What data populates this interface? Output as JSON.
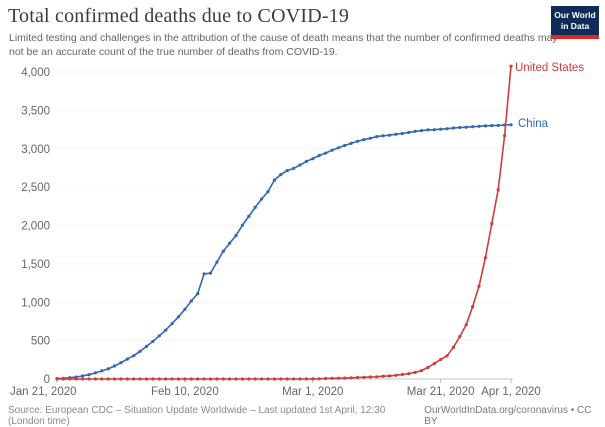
{
  "header": {
    "title": "Total confirmed deaths due to COVID-19",
    "subtitle": "Limited testing and challenges in the attribution of the cause of death means that the number of confirmed deaths may not be an accurate count of the true number of deaths from COVID-19."
  },
  "logo": {
    "line1": "Our World",
    "line2": "in Data",
    "bg_color": "#0d2c5a",
    "stripe_color": "#dc2b1f"
  },
  "footer": {
    "source": "Source: European CDC – Situation Update Worldwide – Last updated 1st April, 12:30 (London time)",
    "link": "OurWorldInData.org/coronavirus • CC BY"
  },
  "chart_data": {
    "type": "line",
    "title": "Total confirmed deaths due to COVID-19",
    "grid": "dotted-horizontal",
    "legend_position": "labels-at-line-end",
    "x_axis": {
      "unit": "date",
      "range_days": [
        0,
        71
      ],
      "ticks": [
        {
          "day": 0,
          "label": "Jan 21, 2020"
        },
        {
          "day": 20,
          "label": "Feb 10, 2020"
        },
        {
          "day": 40,
          "label": "Mar 1, 2020"
        },
        {
          "day": 60,
          "label": "Mar 21, 2020"
        },
        {
          "day": 71,
          "label": "Apr 1, 2020"
        }
      ]
    },
    "y_axis": {
      "range": [
        0,
        4000
      ],
      "ticks": [
        {
          "value": 0,
          "label": "0"
        },
        {
          "value": 500,
          "label": "500"
        },
        {
          "value": 1000,
          "label": "1,000"
        },
        {
          "value": 1500,
          "label": "1,500"
        },
        {
          "value": 2000,
          "label": "2,000"
        },
        {
          "value": 2500,
          "label": "2,500"
        },
        {
          "value": 3000,
          "label": "3,000"
        },
        {
          "value": 3500,
          "label": "3,500"
        },
        {
          "value": 4000,
          "label": "4,000"
        }
      ]
    },
    "series": [
      {
        "name": "China",
        "color": "#3566b1",
        "start_date": "Jan 21, 2020",
        "end_date": "Apr 1, 2020",
        "values": [
          6,
          9,
          17,
          25,
          41,
          56,
          80,
          106,
          132,
          170,
          213,
          259,
          304,
          361,
          425,
          490,
          563,
          637,
          722,
          811,
          908,
          1016,
          1113,
          1369,
          1380,
          1523,
          1665,
          1770,
          1868,
          2004,
          2118,
          2236,
          2345,
          2442,
          2592,
          2663,
          2715,
          2744,
          2788,
          2835,
          2870,
          2912,
          2943,
          2981,
          3013,
          3042,
          3070,
          3097,
          3119,
          3136,
          3158,
          3169,
          3176,
          3189,
          3199,
          3213,
          3226,
          3237,
          3245,
          3248,
          3255,
          3261,
          3270,
          3277,
          3281,
          3287,
          3293,
          3298,
          3301,
          3304,
          3309,
          3312
        ]
      },
      {
        "name": "United States",
        "color": "#d13b3b",
        "start_date": "Jan 21, 2020",
        "end_date": "Apr 1, 2020",
        "values": [
          0,
          0,
          0,
          0,
          0,
          0,
          0,
          0,
          0,
          0,
          0,
          0,
          0,
          0,
          0,
          0,
          0,
          0,
          0,
          0,
          0,
          0,
          0,
          0,
          0,
          0,
          0,
          0,
          0,
          0,
          0,
          0,
          0,
          0,
          0,
          0,
          0,
          0,
          0,
          0,
          1,
          2,
          6,
          9,
          11,
          12,
          15,
          19,
          22,
          26,
          29,
          37,
          41,
          48,
          58,
          69,
          86,
          109,
          150,
          201,
          256,
          302,
          414,
          553,
          706,
          942,
          1209,
          1581,
          2026,
          2467,
          3170,
          4076
        ]
      }
    ]
  }
}
